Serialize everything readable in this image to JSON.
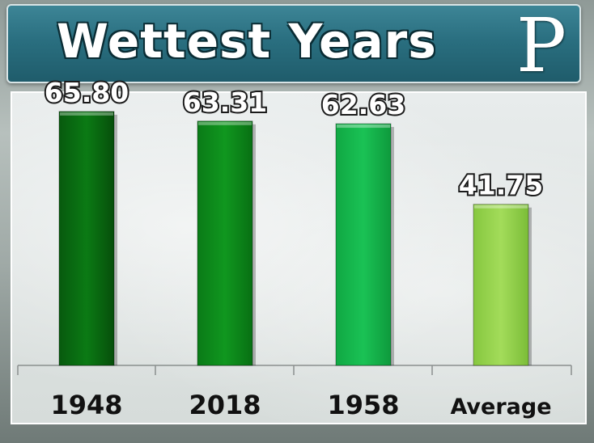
{
  "header": {
    "title": "Wettest Years",
    "logo_letter": "P"
  },
  "colors": {
    "banner": "#2a6f80",
    "bar_1948": "#0b6e12",
    "bar_2018": "#0a8a1a",
    "bar_1958": "#12b84a",
    "bar_average": "#93d44a"
  },
  "chart_data": {
    "type": "bar",
    "title": "Wettest Years",
    "categories": [
      "1948",
      "2018",
      "1958",
      "Average"
    ],
    "values": [
      65.8,
      63.31,
      62.63,
      41.75
    ],
    "value_labels": [
      "65.80",
      "63.31",
      "62.63",
      "41.75"
    ],
    "xlabel": "",
    "ylabel": "",
    "ylim": [
      0,
      75
    ],
    "grid": false,
    "legend": "none"
  }
}
